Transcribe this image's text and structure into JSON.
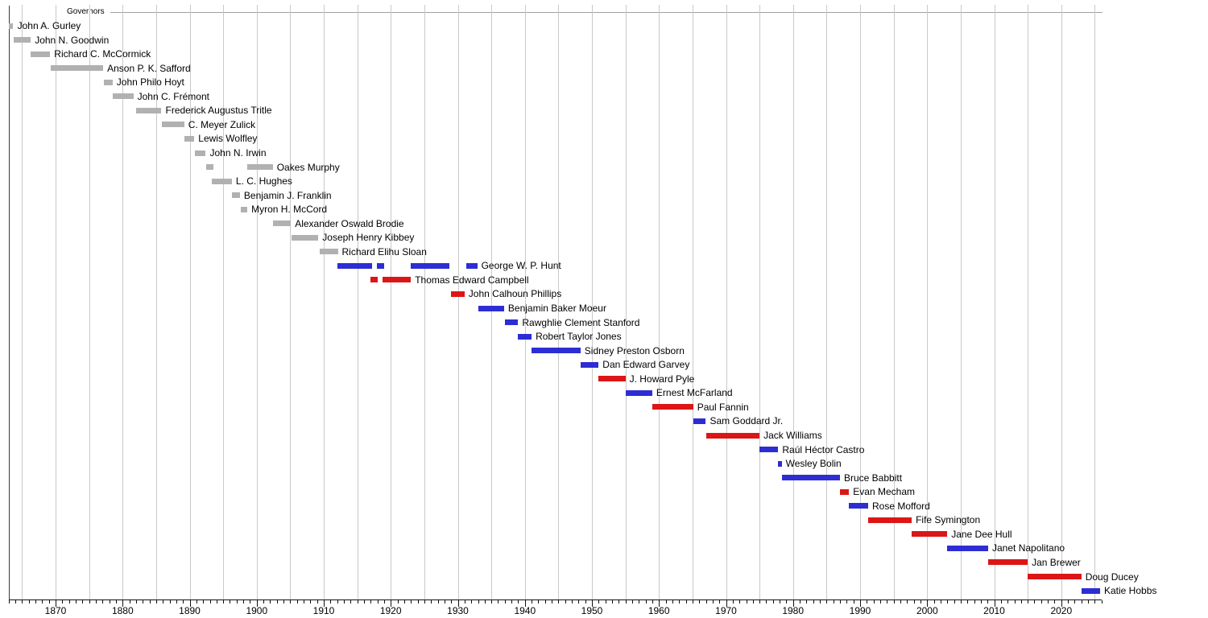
{
  "chart_data": {
    "type": "bar",
    "variant": "gantt-timeline",
    "legend_label": "Governors",
    "x_axis": {
      "domain_start": 1863,
      "domain_end": 2026,
      "gridline_step_years": 5,
      "minor_tick_step_years": 1,
      "label_step_years": 10,
      "tick_labels": [
        "1870",
        "1880",
        "1890",
        "1900",
        "1910",
        "1920",
        "1930",
        "1940",
        "1950",
        "1960",
        "1970",
        "1980",
        "1990",
        "2000",
        "2010",
        "2020"
      ]
    },
    "party_colors": {
      "territorial": "#b1b1b1",
      "democratic": "#2d2dd4",
      "republican": "#dc1616"
    },
    "governors": [
      {
        "name": "John A. Gurley",
        "party": "territorial",
        "terms": [
          [
            1863.0,
            1863.7
          ]
        ]
      },
      {
        "name": "John N. Goodwin",
        "party": "territorial",
        "terms": [
          [
            1863.7,
            1866.3
          ]
        ]
      },
      {
        "name": "Richard C. McCormick",
        "party": "territorial",
        "terms": [
          [
            1866.3,
            1869.2
          ]
        ]
      },
      {
        "name": "Anson P. K. Safford",
        "party": "territorial",
        "terms": [
          [
            1869.3,
            1877.1
          ]
        ]
      },
      {
        "name": "John Philo Hoyt",
        "party": "territorial",
        "terms": [
          [
            1877.2,
            1878.5
          ]
        ]
      },
      {
        "name": "John C. Frémont",
        "party": "territorial",
        "terms": [
          [
            1878.5,
            1881.6
          ]
        ]
      },
      {
        "name": "Frederick Augustus Tritle",
        "party": "territorial",
        "terms": [
          [
            1882.0,
            1885.8
          ]
        ]
      },
      {
        "name": "C. Meyer Zulick",
        "party": "territorial",
        "terms": [
          [
            1885.8,
            1889.2
          ]
        ]
      },
      {
        "name": "Lewis Wolfley",
        "party": "territorial",
        "terms": [
          [
            1889.2,
            1890.7
          ]
        ]
      },
      {
        "name": "John N. Irwin",
        "party": "territorial",
        "terms": [
          [
            1890.8,
            1892.4
          ]
        ]
      },
      {
        "name": "Oakes Murphy",
        "party": "territorial",
        "terms": [
          [
            1892.4,
            1893.5
          ],
          [
            1898.6,
            1902.4
          ]
        ]
      },
      {
        "name": "L. C. Hughes",
        "party": "territorial",
        "terms": [
          [
            1893.3,
            1896.3
          ]
        ]
      },
      {
        "name": "Benjamin J. Franklin",
        "party": "territorial",
        "terms": [
          [
            1896.3,
            1897.5
          ]
        ]
      },
      {
        "name": "Myron H. McCord",
        "party": "territorial",
        "terms": [
          [
            1897.6,
            1898.6
          ]
        ]
      },
      {
        "name": "Alexander Oswald Brodie",
        "party": "territorial",
        "terms": [
          [
            1902.4,
            1905.1
          ]
        ]
      },
      {
        "name": "Joseph Henry Kibbey",
        "party": "territorial",
        "terms": [
          [
            1905.2,
            1909.2
          ]
        ]
      },
      {
        "name": "Richard Elihu Sloan",
        "party": "territorial",
        "terms": [
          [
            1909.4,
            1912.1
          ]
        ]
      },
      {
        "name": "George W. P. Hunt",
        "party": "democratic",
        "terms": [
          [
            1912.0,
            1917.2
          ],
          [
            1917.9,
            1919.0
          ],
          [
            1923.0,
            1928.8
          ],
          [
            1931.2,
            1932.9
          ]
        ]
      },
      {
        "name": "Thomas Edward Campbell",
        "party": "republican",
        "terms": [
          [
            1917.0,
            1918.1
          ],
          [
            1918.8,
            1923.0
          ]
        ]
      },
      {
        "name": "John Calhoun Phillips",
        "party": "republican",
        "terms": [
          [
            1929.0,
            1931.0
          ]
        ]
      },
      {
        "name": "Benjamin Baker Moeur",
        "party": "democratic",
        "terms": [
          [
            1933.0,
            1936.9
          ]
        ]
      },
      {
        "name": "Rawghlie Clement Stanford",
        "party": "democratic",
        "terms": [
          [
            1937.0,
            1939.0
          ]
        ]
      },
      {
        "name": "Robert Taylor Jones",
        "party": "democratic",
        "terms": [
          [
            1939.0,
            1941.0
          ]
        ]
      },
      {
        "name": "Sidney Preston Osborn",
        "party": "democratic",
        "terms": [
          [
            1941.0,
            1948.3
          ]
        ]
      },
      {
        "name": "Dan Edward Garvey",
        "party": "democratic",
        "terms": [
          [
            1948.3,
            1951.0
          ]
        ]
      },
      {
        "name": "J. Howard Pyle",
        "party": "republican",
        "terms": [
          [
            1951.0,
            1955.0
          ]
        ]
      },
      {
        "name": "Ernest McFarland",
        "party": "democratic",
        "terms": [
          [
            1955.0,
            1959.0
          ]
        ]
      },
      {
        "name": "Paul Fannin",
        "party": "republican",
        "terms": [
          [
            1959.0,
            1965.1
          ]
        ]
      },
      {
        "name": "Sam Goddard Jr.",
        "party": "democratic",
        "terms": [
          [
            1965.1,
            1967.0
          ]
        ]
      },
      {
        "name": "Jack Williams",
        "party": "republican",
        "terms": [
          [
            1967.0,
            1975.0
          ]
        ]
      },
      {
        "name": "Raúl Héctor Castro",
        "party": "democratic",
        "terms": [
          [
            1975.0,
            1977.8
          ]
        ]
      },
      {
        "name": "Wesley Bolin",
        "party": "democratic",
        "terms": [
          [
            1977.8,
            1978.3
          ]
        ]
      },
      {
        "name": "Bruce Babbitt",
        "party": "democratic",
        "terms": [
          [
            1978.3,
            1987.0
          ]
        ]
      },
      {
        "name": "Evan Mecham",
        "party": "republican",
        "terms": [
          [
            1987.0,
            1988.35
          ]
        ]
      },
      {
        "name": "Rose Mofford",
        "party": "democratic",
        "terms": [
          [
            1988.35,
            1991.2
          ]
        ]
      },
      {
        "name": "Fife Symington",
        "party": "republican",
        "terms": [
          [
            1991.2,
            1997.7
          ]
        ]
      },
      {
        "name": "Jane Dee Hull",
        "party": "republican",
        "terms": [
          [
            1997.7,
            2003.0
          ]
        ]
      },
      {
        "name": "Janet Napolitano",
        "party": "democratic",
        "terms": [
          [
            2003.0,
            2009.1
          ]
        ]
      },
      {
        "name": "Jan Brewer",
        "party": "republican",
        "terms": [
          [
            2009.1,
            2015.0
          ]
        ]
      },
      {
        "name": "Doug Ducey",
        "party": "republican",
        "terms": [
          [
            2015.0,
            2023.0
          ]
        ]
      },
      {
        "name": "Katie Hobbs",
        "party": "democratic",
        "terms": [
          [
            2023.0,
            2025.8
          ]
        ]
      }
    ]
  }
}
